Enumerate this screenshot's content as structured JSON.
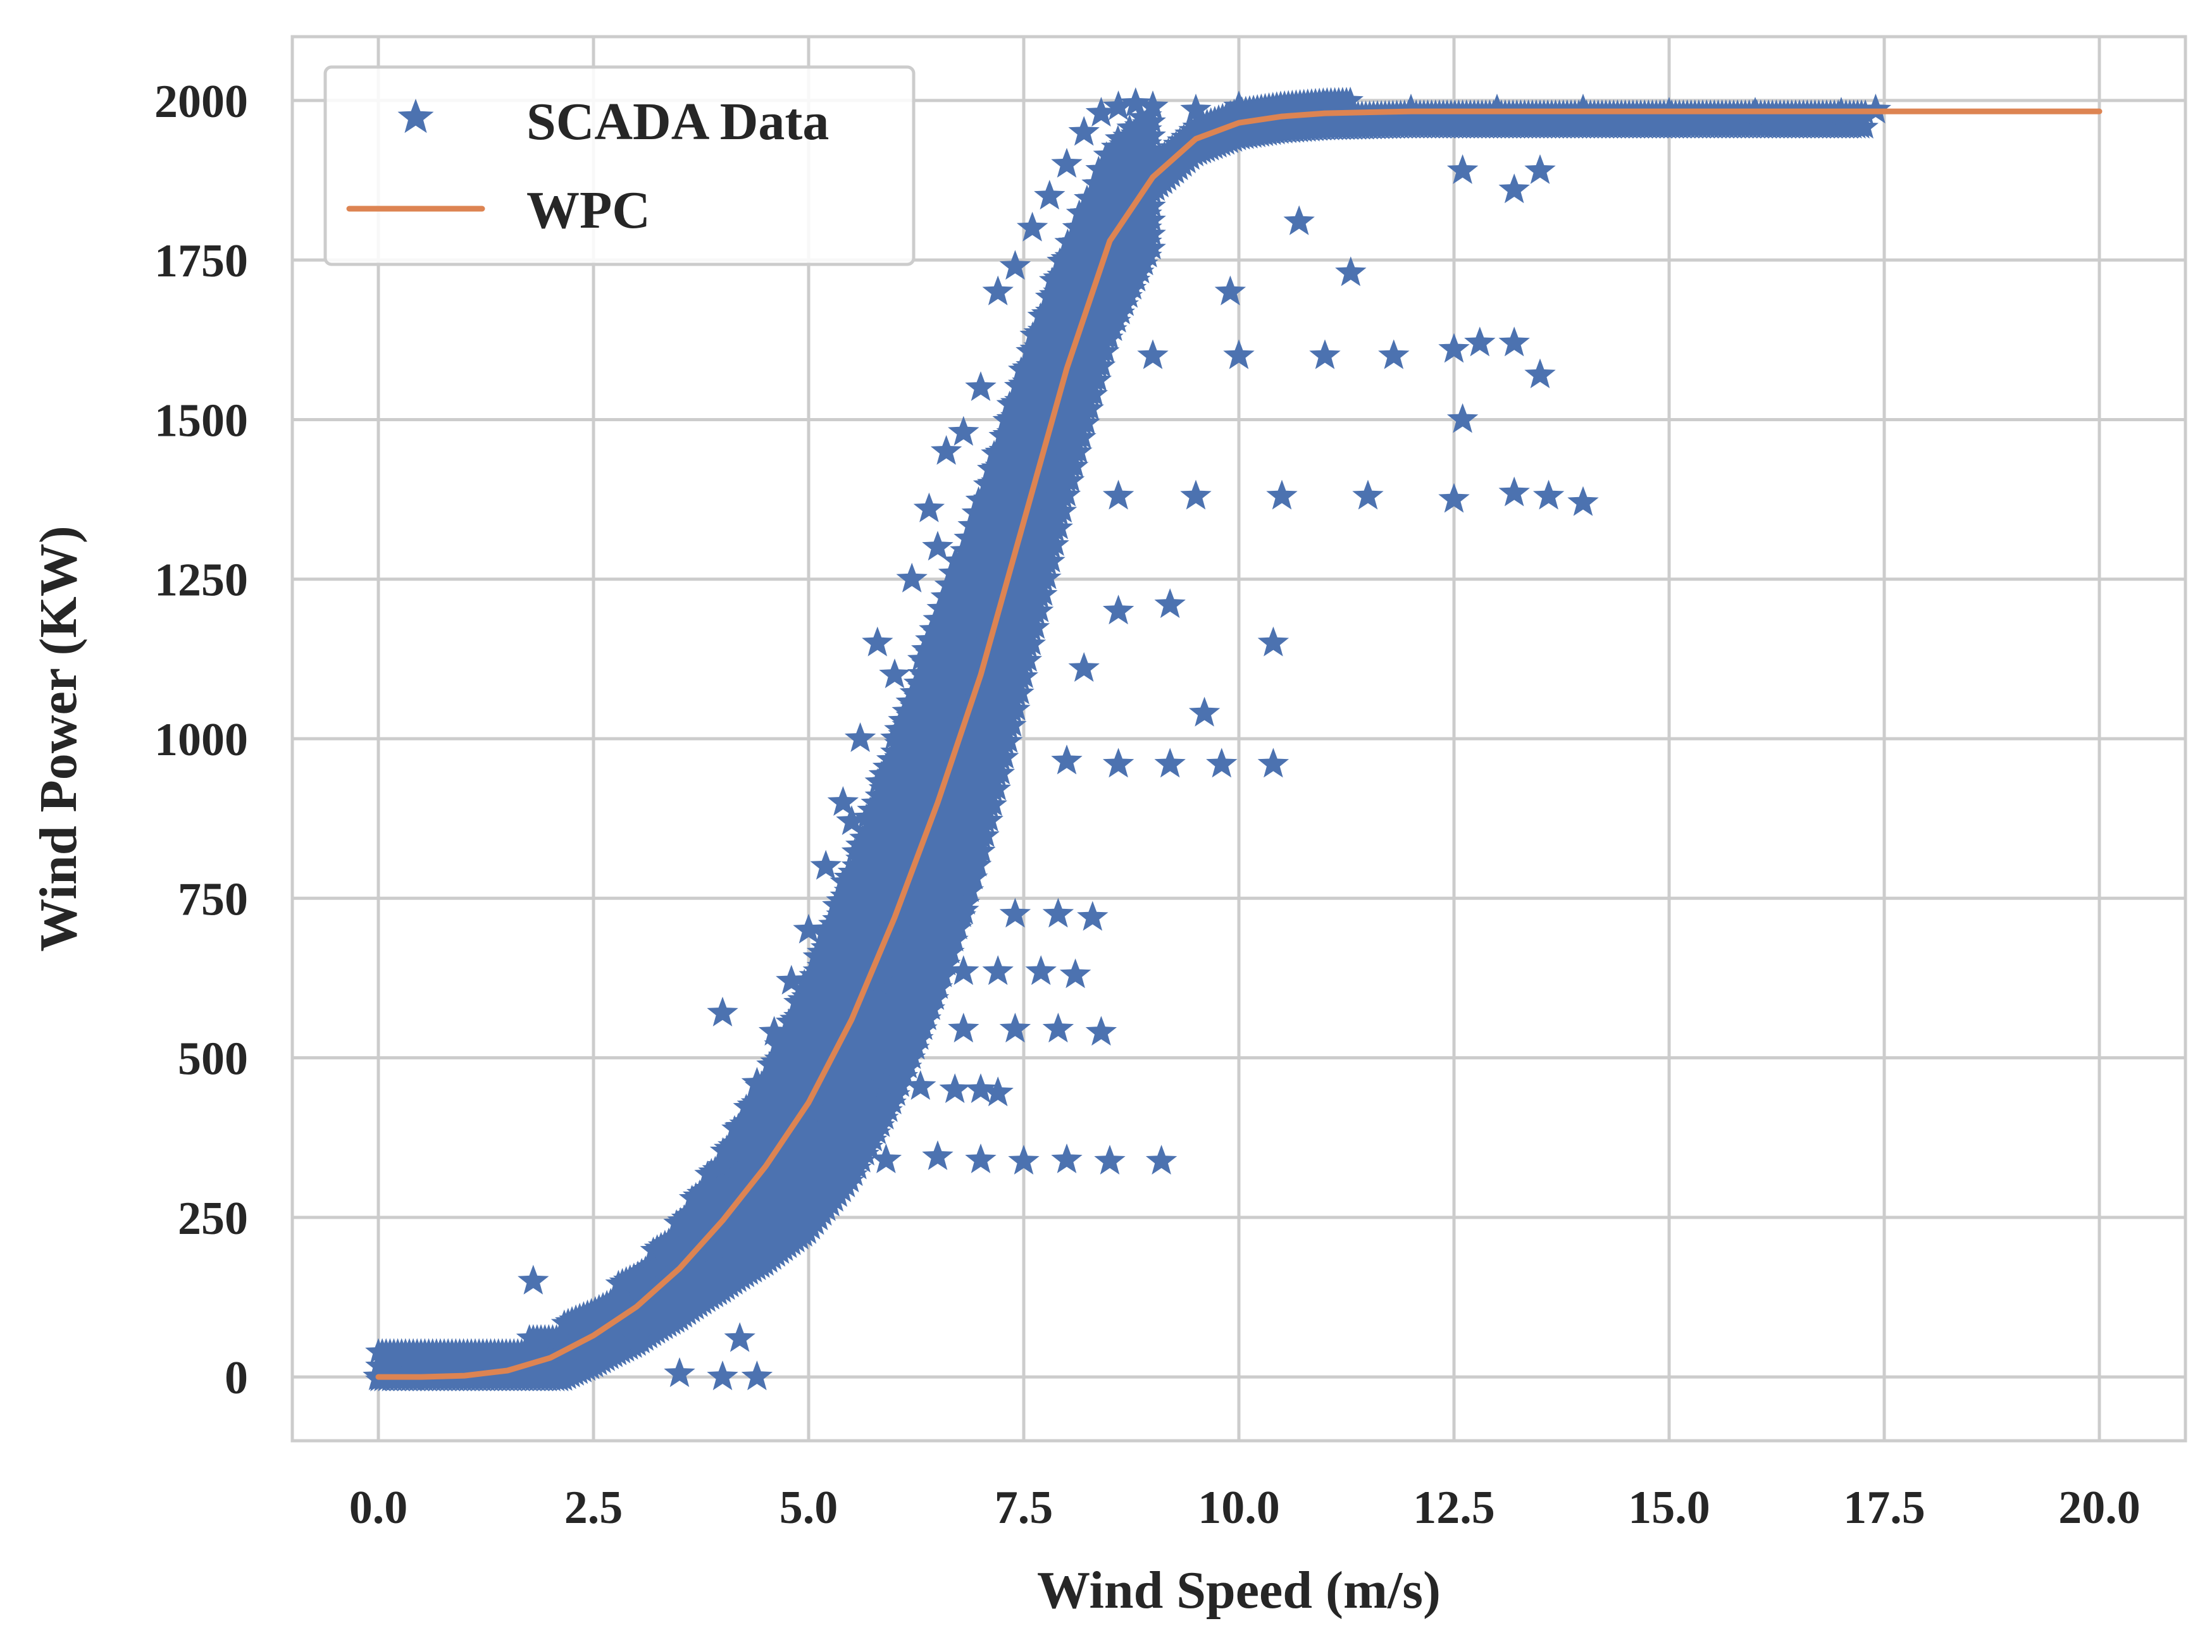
{
  "chart_data": {
    "type": "scatter",
    "title": "",
    "xlabel": "Wind Speed (m/s)",
    "ylabel": "Wind Power (KW)",
    "xlim": [
      -1.0,
      21.0
    ],
    "ylim": [
      -100,
      2100
    ],
    "x_ticks": [
      0.0,
      2.5,
      5.0,
      7.5,
      10.0,
      12.5,
      15.0,
      17.5,
      20.0
    ],
    "x_tick_labels": [
      "0.0",
      "2.5",
      "5.0",
      "7.5",
      "10.0",
      "12.5",
      "15.0",
      "17.5",
      "20.0"
    ],
    "y_ticks": [
      0,
      250,
      500,
      750,
      1000,
      1250,
      1500,
      1750,
      2000
    ],
    "y_tick_labels": [
      "0",
      "250",
      "500",
      "750",
      "1000",
      "1250",
      "1500",
      "1750",
      "2000"
    ],
    "grid": true,
    "legend_position": "top-left",
    "series": [
      {
        "name": "SCADA Data",
        "kind": "scatter",
        "marker": "star",
        "color": "#4c72b0",
        "points": [
          [
            0.0,
            0
          ],
          [
            0.3,
            2
          ],
          [
            0.6,
            1
          ],
          [
            0.9,
            4
          ],
          [
            1.2,
            6
          ],
          [
            1.5,
            12
          ],
          [
            1.8,
            20
          ],
          [
            1.8,
            150
          ],
          [
            2.0,
            30
          ],
          [
            2.2,
            45
          ],
          [
            2.4,
            60
          ],
          [
            2.6,
            80
          ],
          [
            2.8,
            105
          ],
          [
            3.0,
            135
          ],
          [
            3.0,
            60
          ],
          [
            3.2,
            170
          ],
          [
            3.4,
            200
          ],
          [
            3.5,
            5
          ],
          [
            3.6,
            240
          ],
          [
            3.8,
            285
          ],
          [
            3.9,
            200
          ],
          [
            4.0,
            570
          ],
          [
            4.0,
            0
          ],
          [
            4.0,
            330
          ],
          [
            4.2,
            390
          ],
          [
            4.2,
            60
          ],
          [
            4.4,
            460
          ],
          [
            4.4,
            0
          ],
          [
            4.5,
            320
          ],
          [
            4.6,
            540
          ],
          [
            4.8,
            620
          ],
          [
            5.0,
            700
          ],
          [
            5.0,
            420
          ],
          [
            5.2,
            800
          ],
          [
            5.4,
            900
          ],
          [
            5.4,
            540
          ],
          [
            5.5,
            870
          ],
          [
            5.6,
            1000
          ],
          [
            5.8,
            1150
          ],
          [
            5.8,
            620
          ],
          [
            6.0,
            1100
          ],
          [
            6.0,
            700
          ],
          [
            6.2,
            1250
          ],
          [
            6.2,
            820
          ],
          [
            6.4,
            1360
          ],
          [
            6.4,
            900
          ],
          [
            6.5,
            1300
          ],
          [
            6.6,
            1450
          ],
          [
            6.8,
            1480
          ],
          [
            6.8,
            1050
          ],
          [
            7.0,
            1550
          ],
          [
            7.0,
            1150
          ],
          [
            7.2,
            1700
          ],
          [
            7.2,
            1250
          ],
          [
            7.4,
            1740
          ],
          [
            7.4,
            1300
          ],
          [
            7.6,
            1800
          ],
          [
            7.6,
            1380
          ],
          [
            7.8,
            1850
          ],
          [
            7.8,
            1450
          ],
          [
            8.0,
            1900
          ],
          [
            8.0,
            1520
          ],
          [
            8.2,
            1950
          ],
          [
            8.2,
            1600
          ],
          [
            8.4,
            1980
          ],
          [
            8.6,
            1990
          ],
          [
            8.8,
            1995
          ],
          [
            9.0,
            1990
          ],
          [
            9.5,
            1985
          ],
          [
            10.0,
            1990
          ],
          [
            11.0,
            1990
          ],
          [
            12.0,
            1985
          ],
          [
            13.0,
            1985
          ],
          [
            14.0,
            1985
          ],
          [
            15.0,
            1980
          ],
          [
            16.0,
            1980
          ],
          [
            17.0,
            1980
          ],
          [
            17.4,
            1985
          ],
          [
            5.9,
            340
          ],
          [
            6.5,
            345
          ],
          [
            7.0,
            340
          ],
          [
            7.5,
            338
          ],
          [
            8.0,
            340
          ],
          [
            8.5,
            338
          ],
          [
            9.1,
            338
          ],
          [
            5.9,
            460
          ],
          [
            6.3,
            455
          ],
          [
            6.7,
            450
          ],
          [
            7.0,
            450
          ],
          [
            7.2,
            445
          ],
          [
            6.2,
            545
          ],
          [
            6.8,
            545
          ],
          [
            7.4,
            545
          ],
          [
            7.9,
            545
          ],
          [
            8.4,
            540
          ],
          [
            6.3,
            640
          ],
          [
            6.8,
            635
          ],
          [
            7.2,
            635
          ],
          [
            7.7,
            635
          ],
          [
            8.1,
            630
          ],
          [
            6.8,
            730
          ],
          [
            7.4,
            725
          ],
          [
            7.9,
            725
          ],
          [
            8.3,
            720
          ],
          [
            8.0,
            965
          ],
          [
            8.6,
            960
          ],
          [
            9.2,
            960
          ],
          [
            9.8,
            960
          ],
          [
            10.4,
            960
          ],
          [
            9.6,
            1040
          ],
          [
            8.2,
            1110
          ],
          [
            8.6,
            1200
          ],
          [
            9.2,
            1210
          ],
          [
            10.4,
            1150
          ],
          [
            8.6,
            1380
          ],
          [
            9.5,
            1380
          ],
          [
            10.5,
            1380
          ],
          [
            11.5,
            1380
          ],
          [
            12.5,
            1375
          ],
          [
            13.2,
            1385
          ],
          [
            13.6,
            1380
          ],
          [
            14.0,
            1370
          ],
          [
            9.0,
            1600
          ],
          [
            10.0,
            1600
          ],
          [
            11.0,
            1600
          ],
          [
            11.8,
            1600
          ],
          [
            12.5,
            1610
          ],
          [
            12.8,
            1620
          ],
          [
            13.2,
            1620
          ],
          [
            13.5,
            1570
          ],
          [
            11.3,
            1730
          ],
          [
            12.6,
            1500
          ],
          [
            9.9,
            1700
          ],
          [
            10.7,
            1810
          ],
          [
            12.6,
            1890
          ],
          [
            13.2,
            1860
          ],
          [
            13.5,
            1890
          ]
        ]
      },
      {
        "name": "WPC",
        "kind": "line",
        "color": "#dd8452",
        "points": [
          [
            0.0,
            0
          ],
          [
            0.5,
            0
          ],
          [
            1.0,
            2
          ],
          [
            1.5,
            10
          ],
          [
            2.0,
            30
          ],
          [
            2.5,
            65
          ],
          [
            3.0,
            110
          ],
          [
            3.5,
            170
          ],
          [
            4.0,
            245
          ],
          [
            4.5,
            330
          ],
          [
            5.0,
            430
          ],
          [
            5.5,
            560
          ],
          [
            6.0,
            720
          ],
          [
            6.5,
            900
          ],
          [
            7.0,
            1100
          ],
          [
            7.5,
            1340
          ],
          [
            8.0,
            1580
          ],
          [
            8.5,
            1780
          ],
          [
            9.0,
            1880
          ],
          [
            9.5,
            1940
          ],
          [
            10.0,
            1965
          ],
          [
            10.5,
            1975
          ],
          [
            11.0,
            1980
          ],
          [
            12.0,
            1983
          ],
          [
            13.0,
            1983
          ],
          [
            14.0,
            1983
          ],
          [
            15.0,
            1983
          ],
          [
            16.0,
            1983
          ],
          [
            17.0,
            1983
          ],
          [
            18.0,
            1983
          ],
          [
            19.0,
            1983
          ],
          [
            20.0,
            1983
          ]
        ]
      }
    ]
  }
}
